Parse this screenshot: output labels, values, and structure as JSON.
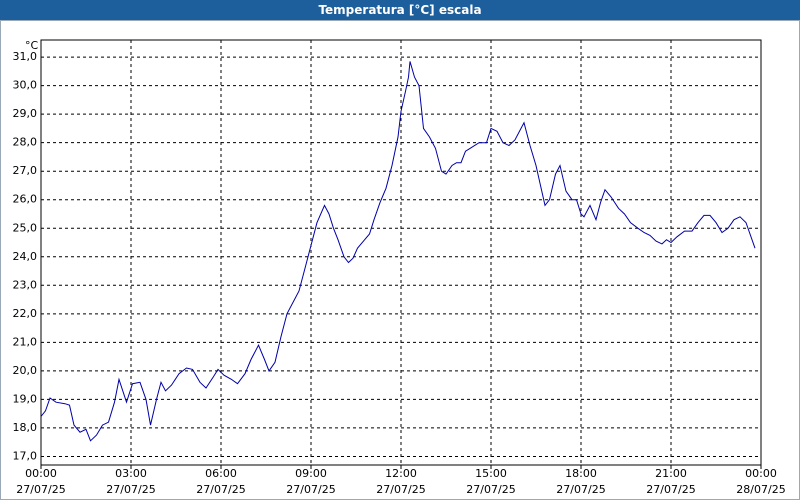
{
  "chart_data": {
    "type": "line",
    "title": "Temperatura [°C] escala",
    "y_unit": "°C",
    "color": "#0000a8",
    "grid": true,
    "xlim": [
      0,
      24
    ],
    "ylim": [
      16.7,
      31.6
    ],
    "xticks": [
      {
        "value": 0,
        "label": "00:00",
        "date": "27/07/25"
      },
      {
        "value": 3,
        "label": "03:00",
        "date": "27/07/25"
      },
      {
        "value": 6,
        "label": "06:00",
        "date": "27/07/25"
      },
      {
        "value": 9,
        "label": "09:00",
        "date": "27/07/25"
      },
      {
        "value": 12,
        "label": "12:00",
        "date": "27/07/25"
      },
      {
        "value": 15,
        "label": "15:00",
        "date": "27/07/25"
      },
      {
        "value": 18,
        "label": "18:00",
        "date": "27/07/25"
      },
      {
        "value": 21,
        "label": "21:00",
        "date": "27/07/25"
      },
      {
        "value": 24,
        "label": "00:00",
        "date": "28/07/25"
      }
    ],
    "yticks": [
      {
        "value": 17,
        "label": "17,0"
      },
      {
        "value": 18,
        "label": "18,0"
      },
      {
        "value": 19,
        "label": "19,0"
      },
      {
        "value": 20,
        "label": "20,0"
      },
      {
        "value": 21,
        "label": "21,0"
      },
      {
        "value": 22,
        "label": "22,0"
      },
      {
        "value": 23,
        "label": "23,0"
      },
      {
        "value": 24,
        "label": "24,0"
      },
      {
        "value": 25,
        "label": "25,0"
      },
      {
        "value": 26,
        "label": "26,0"
      },
      {
        "value": 27,
        "label": "27,0"
      },
      {
        "value": 28,
        "label": "28,0"
      },
      {
        "value": 29,
        "label": "29,0"
      },
      {
        "value": 30,
        "label": "30,0"
      },
      {
        "value": 31,
        "label": "31,0"
      }
    ],
    "x": [
      0.0,
      0.15,
      0.3,
      0.5,
      0.8,
      0.95,
      1.1,
      1.3,
      1.5,
      1.65,
      1.85,
      2.05,
      2.25,
      2.45,
      2.6,
      2.85,
      3.05,
      3.3,
      3.5,
      3.65,
      3.85,
      4.0,
      4.15,
      4.35,
      4.6,
      4.85,
      5.05,
      5.3,
      5.5,
      5.75,
      5.9,
      6.1,
      6.35,
      6.55,
      6.8,
      7.0,
      7.25,
      7.45,
      7.6,
      7.8,
      8.0,
      8.2,
      8.4,
      8.6,
      8.8,
      9.0,
      9.2,
      9.45,
      9.6,
      9.75,
      9.9,
      10.1,
      10.25,
      10.4,
      10.55,
      10.75,
      10.95,
      11.1,
      11.3,
      11.5,
      11.7,
      11.9,
      12.0,
      12.15,
      12.25,
      12.3,
      12.45,
      12.6,
      12.75,
      12.95,
      13.15,
      13.35,
      13.5,
      13.7,
      13.85,
      14.0,
      14.15,
      14.3,
      14.6,
      14.85,
      15.0,
      15.2,
      15.4,
      15.6,
      15.8,
      16.0,
      16.1,
      16.3,
      16.5,
      16.65,
      16.8,
      16.95,
      17.15,
      17.3,
      17.5,
      17.7,
      17.85,
      18.0,
      18.1,
      18.3,
      18.5,
      18.65,
      18.8,
      19.0,
      19.25,
      19.45,
      19.65,
      19.9,
      20.1,
      20.3,
      20.5,
      20.7,
      20.85,
      21.0,
      21.2,
      21.45,
      21.7,
      21.9,
      22.1,
      22.3,
      22.5,
      22.7,
      22.9,
      23.1,
      23.3,
      23.5,
      23.8
    ],
    "values": [
      18.4,
      18.6,
      19.05,
      18.9,
      18.85,
      18.8,
      18.1,
      17.85,
      17.95,
      17.55,
      17.75,
      18.1,
      18.2,
      18.9,
      19.7,
      18.9,
      19.55,
      19.6,
      19.0,
      18.1,
      19.0,
      19.6,
      19.3,
      19.5,
      19.9,
      20.1,
      20.05,
      19.6,
      19.4,
      19.8,
      20.05,
      19.85,
      19.7,
      19.55,
      19.9,
      20.4,
      20.9,
      20.4,
      20.0,
      20.3,
      21.2,
      22.0,
      22.4,
      22.8,
      23.6,
      24.4,
      25.2,
      25.8,
      25.5,
      25.0,
      24.6,
      24.0,
      23.8,
      23.95,
      24.3,
      24.55,
      24.8,
      25.3,
      25.9,
      26.4,
      27.2,
      28.2,
      29.1,
      29.8,
      30.3,
      30.85,
      30.3,
      30.0,
      28.5,
      28.2,
      27.8,
      27.0,
      26.9,
      27.2,
      27.3,
      27.3,
      27.7,
      27.8,
      28.0,
      28.0,
      28.5,
      28.4,
      28.0,
      27.9,
      28.1,
      28.5,
      28.7,
      27.9,
      27.2,
      26.5,
      25.8,
      26.0,
      26.9,
      27.2,
      26.3,
      26.0,
      26.0,
      25.5,
      25.4,
      25.8,
      25.3,
      25.9,
      26.35,
      26.1,
      25.7,
      25.5,
      25.2,
      25.0,
      24.85,
      24.75,
      24.55,
      24.45,
      24.6,
      24.5,
      24.7,
      24.9,
      24.9,
      25.2,
      25.45,
      25.45,
      25.2,
      24.85,
      25.0,
      25.3,
      25.4,
      25.2,
      24.3
    ]
  }
}
